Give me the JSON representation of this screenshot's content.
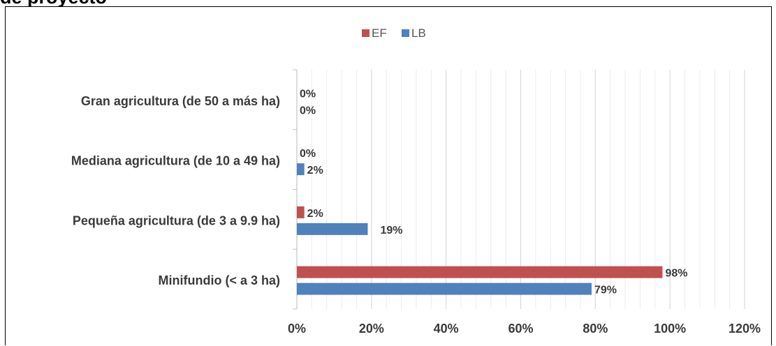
{
  "top_title": "de proyecto",
  "chart_data": {
    "type": "bar",
    "orientation": "horizontal",
    "categories": [
      "Gran agricultura (de 50 a más ha)",
      "Mediana agricultura (de 10 a 49 ha)",
      "Pequeña agricultura  (de 3 a 9.9 ha)",
      "Minifundio (< a 3 ha)"
    ],
    "series": [
      {
        "name": "EF",
        "color": "#c0504d",
        "values": [
          0,
          0,
          2,
          98
        ],
        "labels": [
          "0%",
          "0%",
          "2%",
          "98%"
        ]
      },
      {
        "name": "LB",
        "color": "#4f81bd",
        "values": [
          0,
          2,
          19,
          79
        ],
        "labels": [
          "0%",
          "2%",
          "19%",
          "79%"
        ]
      }
    ],
    "xlim": [
      0,
      120
    ],
    "x_ticks": [
      "0%",
      "20%",
      "40%",
      "60%",
      "80%",
      "100%",
      "120%"
    ],
    "x_tick_values": [
      0,
      20,
      40,
      60,
      80,
      100,
      120
    ],
    "title": "",
    "xlabel": "",
    "ylabel": "",
    "grid": true,
    "legend_position": "top-center"
  }
}
